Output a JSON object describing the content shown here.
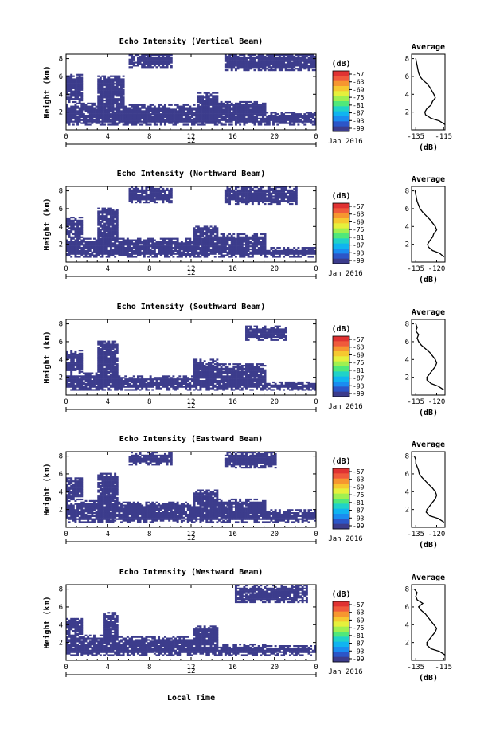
{
  "figure": {
    "xlabel": "Local Time",
    "month_label": "Jan 2016",
    "day_label": "12"
  },
  "colormap": [
    "#3c3c8c",
    "#2c56c8",
    "#1a8cf0",
    "#10b4f0",
    "#20d2c8",
    "#50e87a",
    "#a0f050",
    "#e6f03c",
    "#f6c830",
    "#f69630",
    "#f05a3c",
    "#e03232"
  ],
  "chart_data": [
    {
      "type": "heatmap",
      "title": "Echo Intensity (Vertical Beam)",
      "ylabel": "Height (km)",
      "x_ticks": [
        "0",
        "4",
        "8",
        "12",
        "16",
        "20",
        "0"
      ],
      "x_range": [
        0,
        24
      ],
      "y_ticks": [
        "2",
        "4",
        "6",
        "8"
      ],
      "y_range": [
        0,
        8.5
      ],
      "colorbar": {
        "label": "(dB)",
        "ticks": [
          "-57",
          "-63",
          "-69",
          "-75",
          "-81",
          "-87",
          "-93",
          "-99"
        ]
      },
      "profile": {
        "title": "Average",
        "xlabel": "(dB)",
        "x_ticks": [
          "-135",
          "-115"
        ],
        "x_range": [
          -138,
          -114
        ],
        "y_ticks": [
          "2",
          "4",
          "6",
          "8"
        ],
        "y_range": [
          0,
          8.5
        ],
        "height_km": [
          0.6,
          1.0,
          1.3,
          1.7,
          2.0,
          2.4,
          2.8,
          3.2,
          3.6,
          4.0,
          4.4,
          4.8,
          5.2,
          5.6,
          6.0,
          6.4,
          6.8,
          7.2,
          7.6,
          8.0
        ],
        "values_db": [
          -114,
          -118,
          -124,
          -128,
          -128.5,
          -127,
          -124,
          -123,
          -121,
          -122,
          -123.5,
          -125,
          -127,
          -130,
          -132,
          -133,
          -133.5,
          -134,
          -134.5,
          -135
        ]
      },
      "echo_layers": [
        {
          "start_h": 0,
          "end_h": 3.5,
          "bottom_km": 0.4,
          "top_km": 3.0
        },
        {
          "start_h": 3.0,
          "end_h": 5.5,
          "bottom_km": 0.4,
          "top_km": 6.0
        },
        {
          "start_h": 5.5,
          "end_h": 12.5,
          "bottom_km": 0.4,
          "top_km": 2.8
        },
        {
          "start_h": 12.5,
          "end_h": 14.5,
          "bottom_km": 0.4,
          "top_km": 4.2
        },
        {
          "start_h": 14.5,
          "end_h": 19,
          "bottom_km": 0.4,
          "top_km": 3.2
        },
        {
          "start_h": 19,
          "end_h": 24,
          "bottom_km": 0.4,
          "top_km": 2.0
        },
        {
          "start_h": 0,
          "end_h": 1.5,
          "bottom_km": 3.0,
          "top_km": 6.2
        },
        {
          "start_h": 6,
          "end_h": 10,
          "bottom_km": 6.8,
          "top_km": 8.5
        },
        {
          "start_h": 15,
          "end_h": 24,
          "bottom_km": 6.6,
          "top_km": 8.5
        }
      ]
    },
    {
      "type": "heatmap",
      "title": "Echo Intensity (Northward Beam)",
      "ylabel": "Height (km)",
      "x_ticks": [
        "0",
        "4",
        "8",
        "12",
        "16",
        "20",
        "0"
      ],
      "x_range": [
        0,
        24
      ],
      "y_ticks": [
        "2",
        "4",
        "6",
        "8"
      ],
      "y_range": [
        0,
        8.5
      ],
      "colorbar": {
        "label": "(dB)",
        "ticks": [
          "-57",
          "-63",
          "-69",
          "-75",
          "-81",
          "-87",
          "-93",
          "-99"
        ]
      },
      "profile": {
        "title": "Average",
        "xlabel": "(dB)",
        "x_ticks": [
          "-135",
          "-120"
        ],
        "x_range": [
          -138,
          -114
        ],
        "y_ticks": [
          "2",
          "4",
          "6",
          "8"
        ],
        "y_range": [
          0,
          8.5
        ],
        "height_km": [
          0.6,
          1.0,
          1.3,
          1.7,
          2.0,
          2.4,
          2.8,
          3.2,
          3.6,
          4.0,
          4.4,
          4.8,
          5.2,
          5.6,
          6.0,
          6.4,
          6.8,
          7.2,
          7.6,
          8.0
        ],
        "values_db": [
          -115,
          -118,
          -123,
          -126,
          -126.5,
          -125,
          -123,
          -122,
          -120,
          -121,
          -123,
          -125,
          -127.5,
          -130,
          -132,
          -133,
          -134,
          -134.5,
          -135,
          -135.5
        ]
      },
      "echo_layers": [
        {
          "start_h": 0,
          "end_h": 3.5,
          "bottom_km": 0.4,
          "top_km": 2.6
        },
        {
          "start_h": 3.0,
          "end_h": 5.0,
          "bottom_km": 0.4,
          "top_km": 6.0
        },
        {
          "start_h": 5.0,
          "end_h": 12,
          "bottom_km": 0.4,
          "top_km": 2.6
        },
        {
          "start_h": 12,
          "end_h": 14.5,
          "bottom_km": 0.4,
          "top_km": 4.0
        },
        {
          "start_h": 14.5,
          "end_h": 19,
          "bottom_km": 0.4,
          "top_km": 3.2
        },
        {
          "start_h": 19,
          "end_h": 24,
          "bottom_km": 0.4,
          "top_km": 1.6
        },
        {
          "start_h": 0,
          "end_h": 1.5,
          "bottom_km": 2.6,
          "top_km": 5.0
        },
        {
          "start_h": 6,
          "end_h": 10,
          "bottom_km": 6.5,
          "top_km": 8.5
        },
        {
          "start_h": 15,
          "end_h": 22,
          "bottom_km": 6.4,
          "top_km": 8.5
        }
      ]
    },
    {
      "type": "heatmap",
      "title": "Echo Intensity (Southward Beam)",
      "ylabel": "Height (km)",
      "x_ticks": [
        "0",
        "4",
        "8",
        "12",
        "16",
        "20",
        "0"
      ],
      "x_range": [
        0,
        24
      ],
      "y_ticks": [
        "2",
        "4",
        "6",
        "8"
      ],
      "y_range": [
        0,
        8.5
      ],
      "colorbar": {
        "label": "(dB)",
        "ticks": [
          "-57",
          "-63",
          "-69",
          "-75",
          "-81",
          "-87",
          "-93",
          "-99"
        ]
      },
      "profile": {
        "title": "Average",
        "xlabel": "(dB)",
        "x_ticks": [
          "-135",
          "-120"
        ],
        "x_range": [
          -138,
          -114
        ],
        "y_ticks": [
          "2",
          "4",
          "6",
          "8"
        ],
        "y_range": [
          0,
          8.5
        ],
        "height_km": [
          0.6,
          1.0,
          1.3,
          1.7,
          2.0,
          2.4,
          2.8,
          3.2,
          3.6,
          4.0,
          4.4,
          4.8,
          5.2,
          5.6,
          6.0,
          6.4,
          6.8,
          7.2,
          7.6,
          8.0
        ],
        "values_db": [
          -115,
          -119,
          -124,
          -127,
          -127,
          -125,
          -123,
          -121,
          -120,
          -121,
          -123,
          -125,
          -128,
          -131,
          -133,
          -134,
          -133,
          -135,
          -134,
          -135
        ]
      },
      "echo_layers": [
        {
          "start_h": 0,
          "end_h": 3.5,
          "bottom_km": 0.4,
          "top_km": 2.4
        },
        {
          "start_h": 3.0,
          "end_h": 5.0,
          "bottom_km": 0.4,
          "top_km": 6.0
        },
        {
          "start_h": 5.0,
          "end_h": 12,
          "bottom_km": 0.4,
          "top_km": 2.2
        },
        {
          "start_h": 12,
          "end_h": 14.5,
          "bottom_km": 0.4,
          "top_km": 4.0
        },
        {
          "start_h": 14.5,
          "end_h": 19,
          "bottom_km": 0.4,
          "top_km": 3.4
        },
        {
          "start_h": 19,
          "end_h": 24,
          "bottom_km": 0.4,
          "top_km": 1.4
        },
        {
          "start_h": 0,
          "end_h": 1.5,
          "bottom_km": 2.4,
          "top_km": 5.0
        },
        {
          "start_h": 17,
          "end_h": 21,
          "bottom_km": 6.0,
          "top_km": 7.8
        }
      ]
    },
    {
      "type": "heatmap",
      "title": "Echo Intensity (Eastward Beam)",
      "ylabel": "Height (km)",
      "x_ticks": [
        "0",
        "4",
        "8",
        "12",
        "16",
        "20",
        "0"
      ],
      "x_range": [
        0,
        24
      ],
      "y_ticks": [
        "2",
        "4",
        "6",
        "8"
      ],
      "y_range": [
        0,
        8.5
      ],
      "colorbar": {
        "label": "(dB)",
        "ticks": [
          "-57",
          "-63",
          "-69",
          "-75",
          "-81",
          "-87",
          "-93",
          "-99"
        ]
      },
      "profile": {
        "title": "Average",
        "xlabel": "(dB)",
        "x_ticks": [
          "-135",
          "-120"
        ],
        "x_range": [
          -138,
          -114
        ],
        "y_ticks": [
          "2",
          "4",
          "6",
          "8"
        ],
        "y_range": [
          0,
          8.5
        ],
        "height_km": [
          0.6,
          1.0,
          1.3,
          1.7,
          2.0,
          2.4,
          2.8,
          3.2,
          3.6,
          4.0,
          4.4,
          4.8,
          5.2,
          5.6,
          6.0,
          6.4,
          6.8,
          7.2,
          7.6,
          8.0
        ],
        "values_db": [
          -115,
          -119,
          -125,
          -127.5,
          -127,
          -125,
          -123,
          -121,
          -120,
          -121,
          -123,
          -125.5,
          -128,
          -130.5,
          -132.5,
          -133,
          -134,
          -135,
          -135,
          -136
        ]
      },
      "echo_layers": [
        {
          "start_h": 0,
          "end_h": 3.5,
          "bottom_km": 0.4,
          "top_km": 3.0
        },
        {
          "start_h": 3.0,
          "end_h": 5.0,
          "bottom_km": 0.4,
          "top_km": 6.0
        },
        {
          "start_h": 5.0,
          "end_h": 12,
          "bottom_km": 0.4,
          "top_km": 2.8
        },
        {
          "start_h": 12,
          "end_h": 14.5,
          "bottom_km": 0.4,
          "top_km": 4.2
        },
        {
          "start_h": 14.5,
          "end_h": 19,
          "bottom_km": 0.4,
          "top_km": 3.2
        },
        {
          "start_h": 19,
          "end_h": 24,
          "bottom_km": 0.4,
          "top_km": 2.0
        },
        {
          "start_h": 0,
          "end_h": 1.5,
          "bottom_km": 3.0,
          "top_km": 5.5
        },
        {
          "start_h": 6,
          "end_h": 10,
          "bottom_km": 6.8,
          "top_km": 8.5
        },
        {
          "start_h": 15,
          "end_h": 20,
          "bottom_km": 6.6,
          "top_km": 8.5
        }
      ]
    },
    {
      "type": "heatmap",
      "title": "Echo Intensity (Westward Beam)",
      "ylabel": "Height (km)",
      "x_ticks": [
        "0",
        "4",
        "8",
        "12",
        "16",
        "20",
        "0"
      ],
      "x_range": [
        0,
        24
      ],
      "y_ticks": [
        "2",
        "4",
        "6",
        "8"
      ],
      "y_range": [
        0,
        8.5
      ],
      "colorbar": {
        "label": "(dB)",
        "ticks": [
          "-57",
          "-63",
          "-69",
          "-75",
          "-81",
          "-87",
          "-93",
          "-99"
        ]
      },
      "profile": {
        "title": "Average",
        "xlabel": "(dB)",
        "x_ticks": [
          "-135",
          "-115"
        ],
        "x_range": [
          -138,
          -114
        ],
        "y_ticks": [
          "2",
          "4",
          "6",
          "8"
        ],
        "y_range": [
          0,
          8.5
        ],
        "height_km": [
          0.6,
          1.0,
          1.3,
          1.7,
          2.0,
          2.4,
          2.8,
          3.2,
          3.6,
          4.0,
          4.4,
          4.8,
          5.2,
          5.6,
          6.0,
          6.4,
          6.8,
          7.2,
          7.6,
          8.0
        ],
        "values_db": [
          -114,
          -118,
          -124,
          -127,
          -127,
          -125,
          -123,
          -121,
          -120,
          -122,
          -124,
          -126,
          -128,
          -131,
          -133,
          -130,
          -134,
          -135,
          -134,
          -136
        ]
      },
      "echo_layers": [
        {
          "start_h": 0,
          "end_h": 3.5,
          "bottom_km": 0.4,
          "top_km": 2.8
        },
        {
          "start_h": 3.5,
          "end_h": 5.0,
          "bottom_km": 0.4,
          "top_km": 5.4
        },
        {
          "start_h": 5.0,
          "end_h": 12,
          "bottom_km": 0.4,
          "top_km": 2.6
        },
        {
          "start_h": 12,
          "end_h": 14.5,
          "bottom_km": 0.4,
          "top_km": 3.8
        },
        {
          "start_h": 14.5,
          "end_h": 19,
          "bottom_km": 0.4,
          "top_km": 1.8
        },
        {
          "start_h": 19,
          "end_h": 24,
          "bottom_km": 0.4,
          "top_km": 1.6
        },
        {
          "start_h": 0,
          "end_h": 1.5,
          "bottom_km": 2.8,
          "top_km": 4.6
        },
        {
          "start_h": 16,
          "end_h": 23,
          "bottom_km": 6.4,
          "top_km": 8.5
        }
      ]
    }
  ]
}
